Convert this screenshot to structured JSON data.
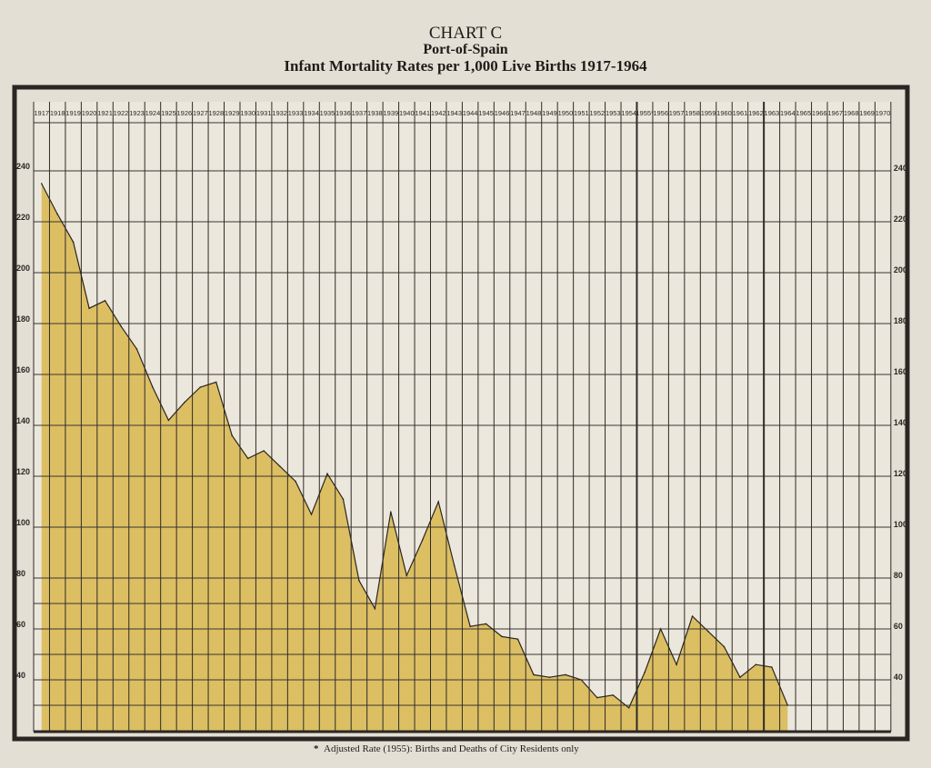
{
  "chart_data": {
    "type": "area",
    "title": "CHART C",
    "subtitle": "Port-of-Spain",
    "heading": "Infant Mortality Rates per 1,000 Live Births 1917-1964",
    "xlabel": "",
    "ylabel": "",
    "x_tick_labels": [
      "1917",
      "1918",
      "1919",
      "1920",
      "1921",
      "1922",
      "1923",
      "1924",
      "1925",
      "1926",
      "1927",
      "1928",
      "1929",
      "1930",
      "1931",
      "1932",
      "1933",
      "1934",
      "1935",
      "1936",
      "1937",
      "1938",
      "1939",
      "1940",
      "1941",
      "1942",
      "1943",
      "1944",
      "1945",
      "1946",
      "1947",
      "1948",
      "1949",
      "1950",
      "1951",
      "1952",
      "1953",
      "1954",
      "1955*",
      "1956",
      "1957",
      "1958",
      "1959",
      "1960",
      "1961",
      "1962",
      "1963",
      "1964",
      "1965",
      "1966",
      "1967",
      "1968",
      "1969",
      "1970"
    ],
    "y_tick_labels": [
      "240",
      "220",
      "200",
      "180",
      "160",
      "140",
      "120",
      "100",
      "80",
      "60",
      "40"
    ],
    "ylim": [
      20,
      240
    ],
    "x": [
      1917,
      1918,
      1919,
      1920,
      1921,
      1922,
      1923,
      1924,
      1925,
      1926,
      1927,
      1928,
      1929,
      1930,
      1931,
      1932,
      1933,
      1934,
      1935,
      1936,
      1937,
      1938,
      1939,
      1940,
      1941,
      1942,
      1943,
      1944,
      1945,
      1946,
      1947,
      1948,
      1949,
      1950,
      1951,
      1952,
      1953,
      1954,
      1955,
      1956,
      1957,
      1958,
      1959,
      1960,
      1961,
      1962,
      1963,
      1964
    ],
    "values": [
      235,
      223,
      212,
      186,
      189,
      179,
      170,
      155,
      142,
      149,
      155,
      157,
      136,
      127,
      130,
      124,
      118,
      105,
      121,
      111,
      79,
      68,
      106,
      81,
      95,
      110,
      85,
      61,
      62,
      57,
      56,
      42,
      41,
      42,
      40,
      33,
      34,
      29,
      43,
      60,
      46,
      65,
      59,
      53,
      41,
      46,
      45,
      30
    ],
    "fill_color": "#dcbf63",
    "grid": true,
    "footnote": "Adjusted Rate (1955): Births and Deaths of City Residents only",
    "footnote_marker": "*"
  }
}
